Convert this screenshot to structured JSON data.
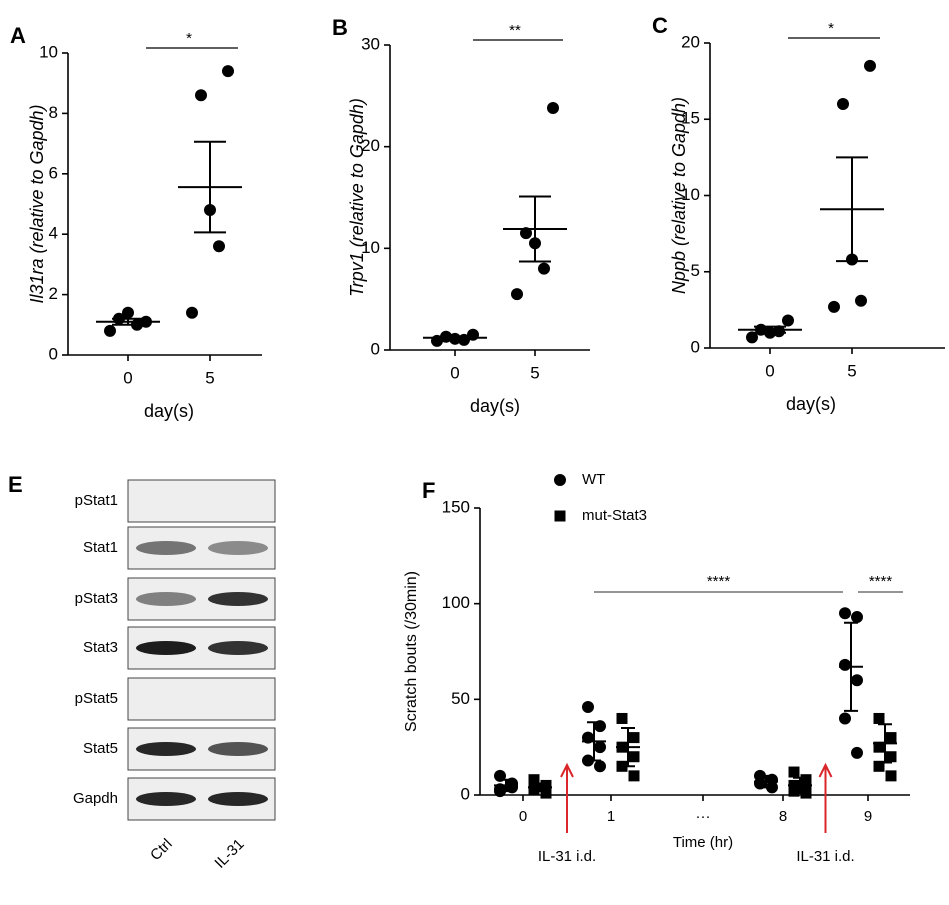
{
  "chart_data": [
    {
      "type": "dot",
      "panel": "A",
      "ylabel": "Il31ra (relative to Gapdh)",
      "xlabel": "day(s)",
      "categories": [
        "0",
        "5"
      ],
      "values": [
        [
          1.1,
          1.2,
          1.4,
          1.0,
          0.8
        ],
        [
          9.4,
          8.6,
          4.8,
          3.6,
          1.4
        ]
      ],
      "mean": [
        1.1,
        5.56
      ],
      "error": [
        0.1,
        1.5
      ],
      "ylim": [
        0,
        10
      ],
      "yticks": [
        0,
        2,
        4,
        6,
        8,
        10
      ],
      "significance": "*",
      "color": "#000000"
    },
    {
      "type": "dot",
      "panel": "B",
      "ylabel": "Trpv1 (relative to Gapdh)",
      "xlabel": "day(s)",
      "categories": [
        "0",
        "5"
      ],
      "values": [
        [
          1.5,
          1.3,
          1.1,
          1.0,
          0.9
        ],
        [
          23.8,
          11.5,
          10.5,
          8.0,
          5.5
        ]
      ],
      "mean": [
        1.2,
        11.9
      ],
      "error": [
        0.1,
        3.2
      ],
      "ylim": [
        0,
        30
      ],
      "yticks": [
        0,
        10,
        20,
        30
      ],
      "significance": "**",
      "color": "#000000"
    },
    {
      "type": "dot",
      "panel": "C",
      "ylabel": "Nppb (relative to Gapdh)",
      "xlabel": "day(s)",
      "categories": [
        "0",
        "5"
      ],
      "values": [
        [
          1.8,
          1.2,
          1.0,
          1.1,
          0.7
        ],
        [
          18.5,
          16.0,
          5.8,
          3.1,
          2.7
        ]
      ],
      "mean": [
        1.2,
        9.1
      ],
      "error": [
        0.2,
        3.4
      ],
      "ylim": [
        0,
        20
      ],
      "yticks": [
        0,
        5,
        10,
        15,
        20
      ],
      "significance": "*",
      "color": "#000000"
    },
    {
      "type": "grouped-dot",
      "panel": "F",
      "ylabel": "Scratch bouts (/30min)",
      "xlabel": "Time (hr)",
      "categories": [
        "0",
        "1",
        "···",
        "8",
        "9"
      ],
      "series": [
        {
          "name": "WT",
          "marker": "circle",
          "color": "#000000",
          "values": [
            [
              10,
              5,
              3,
              4,
              2,
              6
            ],
            [
              46,
              36,
              30,
              25,
              18,
              15
            ],
            null,
            [
              10,
              8,
              6,
              4
            ],
            [
              95,
              93,
              68,
              60,
              40,
              22
            ]
          ],
          "mean": [
            5,
            28,
            null,
            7,
            67
          ],
          "error": [
            3,
            10,
            null,
            3,
            23
          ]
        },
        {
          "name": "mut-Stat3",
          "marker": "square",
          "color": "#000000",
          "values": [
            [
              8,
              5,
              3,
              2,
              4,
              1
            ],
            [
              40,
              30,
              25,
              20,
              15,
              10
            ],
            null,
            [
              12,
              8,
              5,
              3,
              2,
              1
            ],
            [
              40,
              30,
              25,
              20,
              15,
              10
            ]
          ],
          "mean": [
            4,
            25,
            null,
            5,
            27
          ],
          "error": [
            2,
            10,
            null,
            4,
            10
          ]
        }
      ],
      "ylim": [
        0,
        150
      ],
      "yticks": [
        0,
        50,
        100,
        150
      ],
      "significance": [
        {
          "label": "****",
          "from": "1",
          "to": "9",
          "series": "WT"
        },
        {
          "label": "****",
          "from": "9",
          "to": "9",
          "series": "both"
        }
      ],
      "annotations": [
        "IL-31 i.d.",
        "IL-31 i.d."
      ],
      "arrow_color": "#d9262b"
    }
  ],
  "blot": {
    "panel": "E",
    "rows": [
      "pStat1",
      "Stat1",
      "pStat3",
      "Stat3",
      "pStat5",
      "Stat5",
      "Gapdh"
    ],
    "lanes": [
      "Ctrl",
      "IL-31"
    ]
  }
}
